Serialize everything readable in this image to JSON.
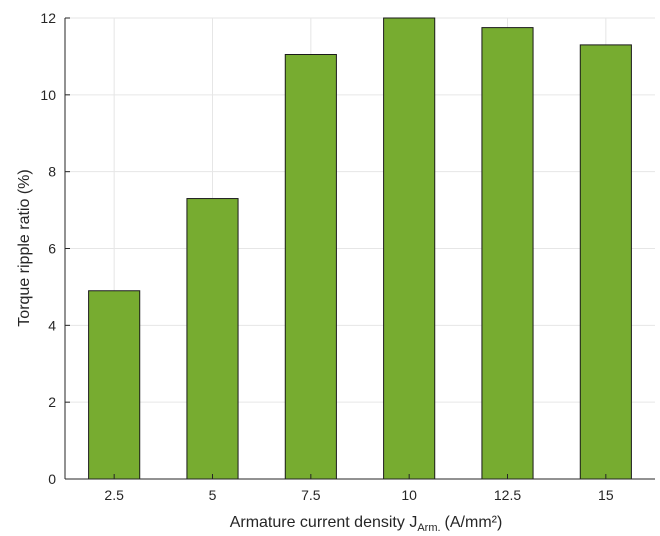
{
  "chart_data": {
    "type": "bar",
    "categories": [
      "2.5",
      "5",
      "7.5",
      "10",
      "12.5",
      "15"
    ],
    "values": [
      4.9,
      7.3,
      11.05,
      12.0,
      11.75,
      11.3
    ],
    "ylim": [
      0,
      12
    ],
    "yticks": [
      "0",
      "2",
      "4",
      "6",
      "8",
      "10",
      "12"
    ],
    "ylabel": "Torque ripple ratio (%)",
    "xlabel": {
      "main": "Armature current density J",
      "subscript": "Arm.",
      "unit": "(A/mm²)"
    },
    "grid": true,
    "colors": {
      "bar": "#77AC30",
      "bar_edge": "#1a1a1a",
      "grid": "#e6e6e6",
      "axis": "#262626"
    }
  }
}
